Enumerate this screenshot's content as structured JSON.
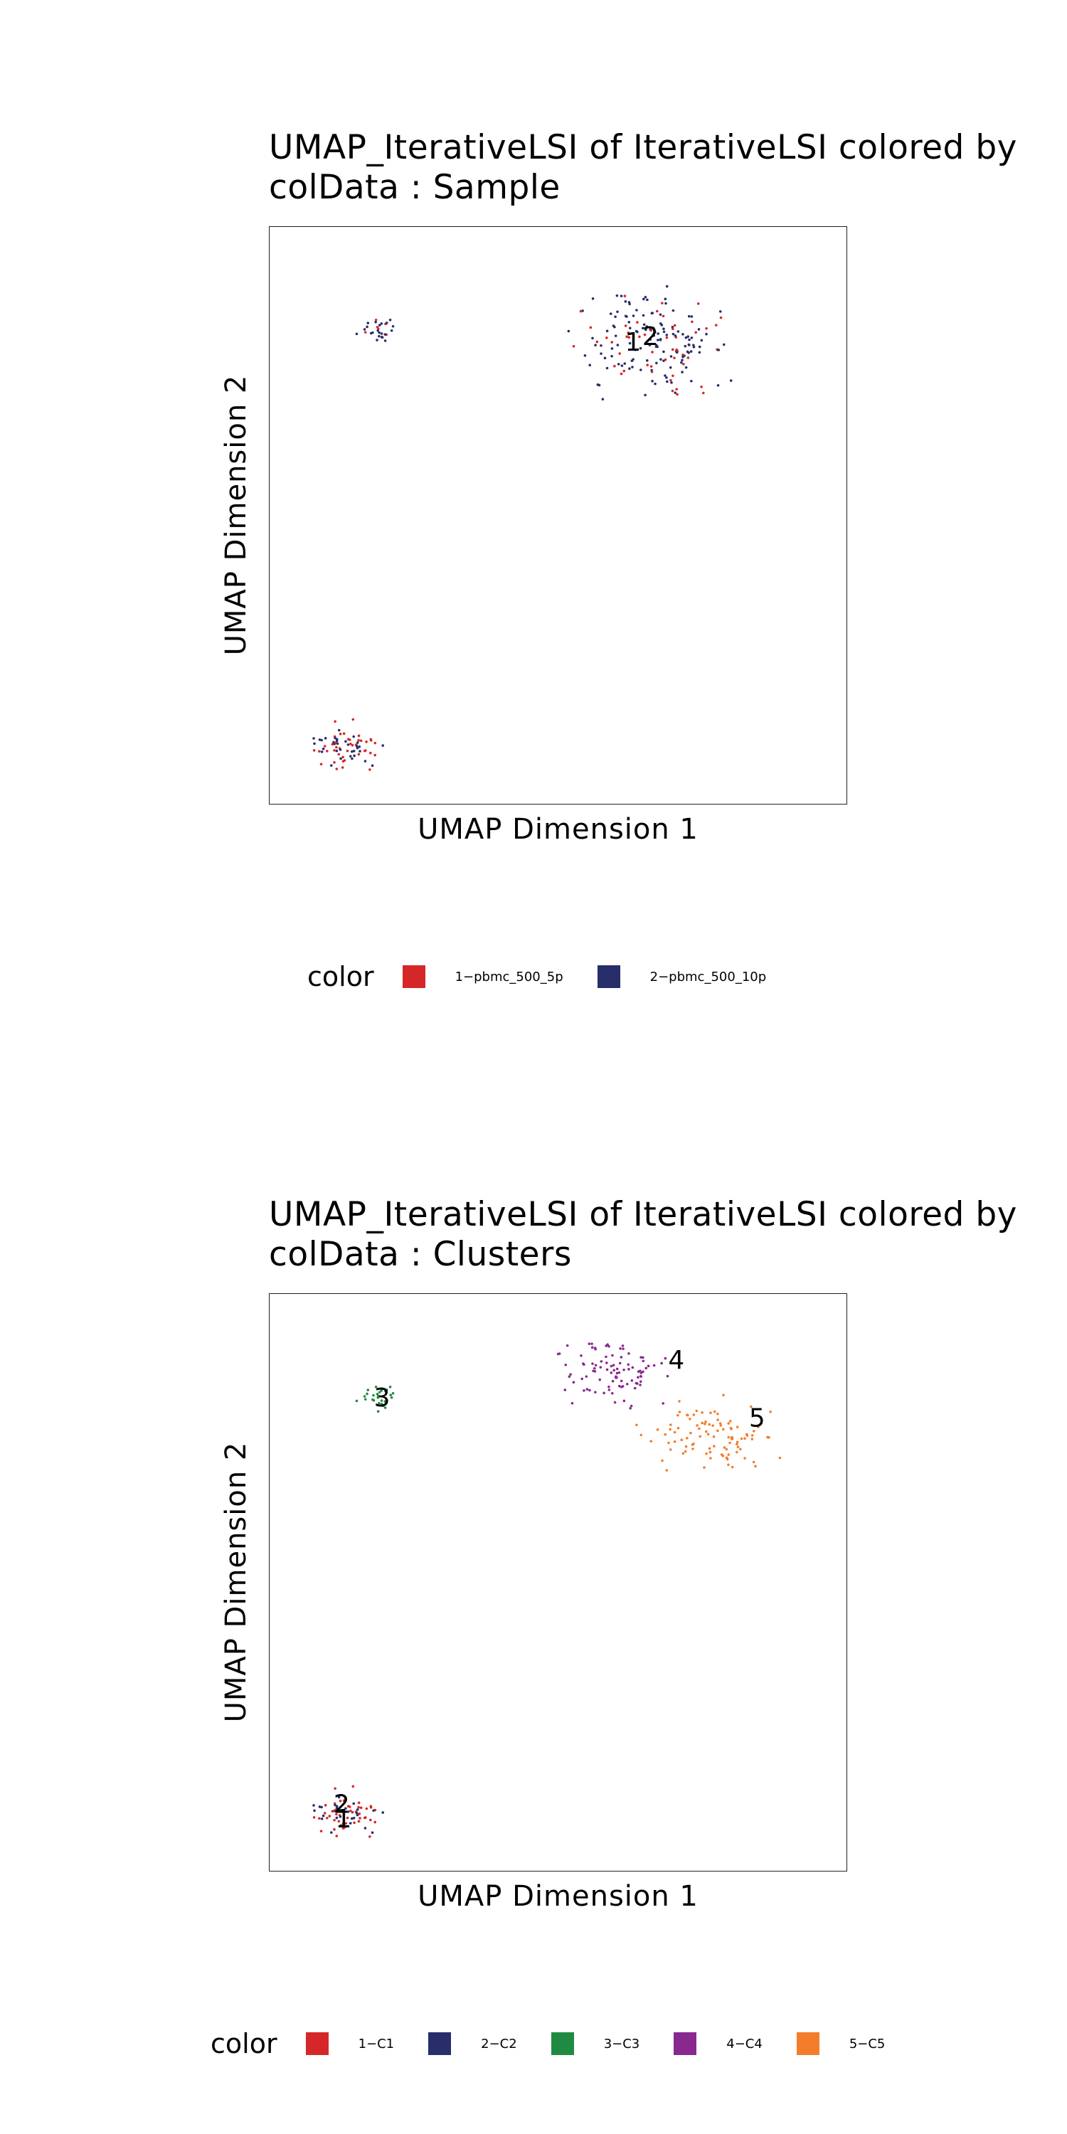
{
  "chart_data": [
    {
      "type": "scatter",
      "title_line1": "UMAP_IterativeLSI of IterativeLSI  colored by",
      "title_line2": "colData :  Sample",
      "xlabel": "UMAP Dimension 1",
      "ylabel": "UMAP Dimension 2",
      "grid": false,
      "legend_position": "bottom",
      "legend_title": "color",
      "series": [
        {
          "name": "1−pbmc_500_5p",
          "color": "#d62728"
        },
        {
          "name": "2−pbmc_500_10p",
          "color": "#272e6a"
        }
      ],
      "clusters": [
        {
          "cx": 0.67,
          "cy": 0.8,
          "rx": 0.17,
          "ry": 0.12,
          "n": 190,
          "mix": [
            0.35,
            0.65
          ]
        },
        {
          "cx": 0.19,
          "cy": 0.82,
          "rx": 0.045,
          "ry": 0.035,
          "n": 28,
          "mix": [
            0.3,
            0.7
          ]
        },
        {
          "cx": 0.13,
          "cy": 0.1,
          "rx": 0.085,
          "ry": 0.055,
          "n": 75,
          "mix": [
            0.55,
            0.45
          ]
        }
      ],
      "cluster_labels": [
        {
          "text": "1",
          "x": 0.63,
          "y": 0.8
        },
        {
          "text": "2",
          "x": 0.66,
          "y": 0.81
        }
      ]
    },
    {
      "type": "scatter",
      "title_line1": "UMAP_IterativeLSI of IterativeLSI  colored by",
      "title_line2": "colData :  Clusters",
      "xlabel": "UMAP Dimension 1",
      "ylabel": "UMAP Dimension 2",
      "grid": false,
      "legend_position": "bottom",
      "legend_title": "color",
      "series": [
        {
          "name": "1−C1",
          "color": "#d62728"
        },
        {
          "name": "2−C2",
          "color": "#272e6a"
        },
        {
          "name": "3−C3",
          "color": "#208a42"
        },
        {
          "name": "4−C4",
          "color": "#89288f"
        },
        {
          "name": "5−C5",
          "color": "#f47d2b"
        }
      ],
      "clusters": [
        {
          "cx": 0.6,
          "cy": 0.86,
          "rx": 0.13,
          "ry": 0.08,
          "n": 95,
          "mix": [
            0,
            0,
            0,
            1,
            0
          ]
        },
        {
          "cx": 0.77,
          "cy": 0.76,
          "rx": 0.15,
          "ry": 0.08,
          "n": 100,
          "mix": [
            0,
            0,
            0,
            0,
            1
          ]
        },
        {
          "cx": 0.19,
          "cy": 0.82,
          "rx": 0.045,
          "ry": 0.035,
          "n": 28,
          "mix": [
            0,
            0,
            1,
            0,
            0
          ]
        },
        {
          "cx": 0.13,
          "cy": 0.1,
          "rx": 0.085,
          "ry": 0.055,
          "n": 75,
          "mix": [
            0.6,
            0.4,
            0,
            0,
            0
          ]
        }
      ],
      "cluster_labels": [
        {
          "text": "4",
          "x": 0.705,
          "y": 0.885
        },
        {
          "text": "5",
          "x": 0.845,
          "y": 0.785
        },
        {
          "text": "3",
          "x": 0.195,
          "y": 0.82
        },
        {
          "text": "2",
          "x": 0.125,
          "y": 0.115
        },
        {
          "text": "1",
          "x": 0.128,
          "y": 0.09
        }
      ]
    }
  ]
}
